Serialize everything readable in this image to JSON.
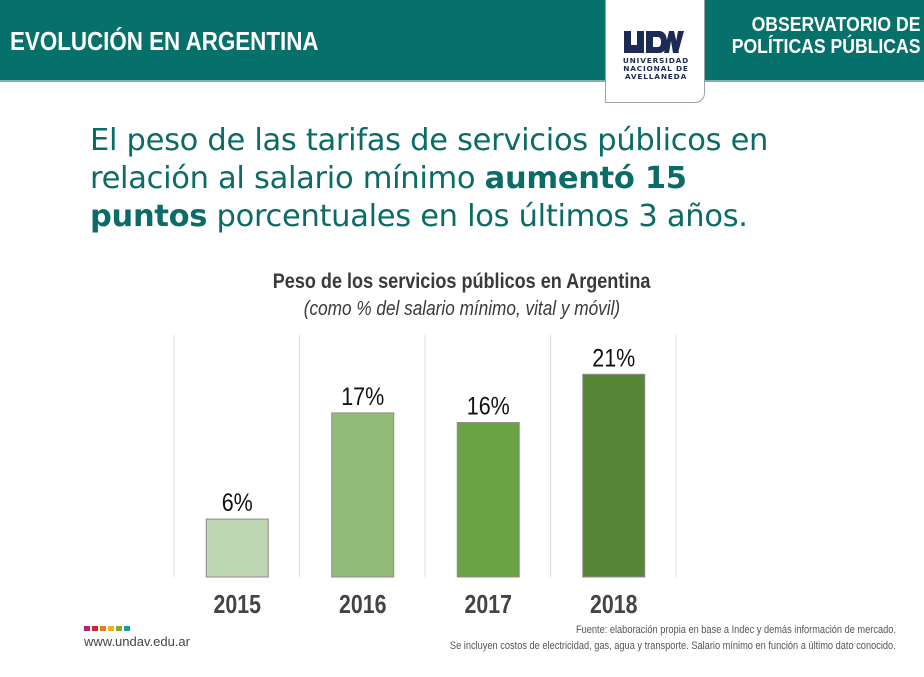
{
  "header": {
    "title": "EVOLUCIÓN EN ARGENTINA",
    "observatory_line1": "OBSERVATORIO DE",
    "observatory_line2": "POLÍTICAS PÚBLICAS",
    "logo": {
      "mark": "UNDAV",
      "line1": "UNIVERSIDAD",
      "line2": "NACIONAL DE",
      "line3": "AVELLANEDA"
    }
  },
  "headline": {
    "part1": "El peso de las tarifas de servicios públicos en relación al salario mínimo ",
    "bold1": "aumentó 15",
    "bold2": "puntos",
    "part2": " porcentuales en los últimos 3 años."
  },
  "chart_data": {
    "type": "bar",
    "title": "Peso de los servicios públicos  en Argentina",
    "subtitle": "(como % del salario mínimo, vital y móvil)",
    "xlabel": "",
    "ylabel": "",
    "categories": [
      "2015",
      "2016",
      "2017",
      "2018"
    ],
    "values": [
      6,
      17,
      16,
      21
    ],
    "data_labels": [
      "6%",
      "17%",
      "16%",
      "21%"
    ],
    "bar_colors": [
      "#bdd7b2",
      "#93bb78",
      "#6aa343",
      "#548635"
    ],
    "ylim": [
      0,
      23
    ],
    "grid": "vertical separators",
    "legend": "none",
    "unit": "%"
  },
  "footer": {
    "url": "www.undav.edu.ar",
    "brand_colors": [
      "#b5247a",
      "#d1262b",
      "#ee7a1f",
      "#f1b51a",
      "#8aac2b",
      "#1b9aaa"
    ],
    "source": "Fuente: elaboración propia en base a Indec y demás información de mercado.",
    "note": "Se incluyen costos de electricidad, gas, agua y transporte. Salario mínimo en función a último dato conocido."
  }
}
